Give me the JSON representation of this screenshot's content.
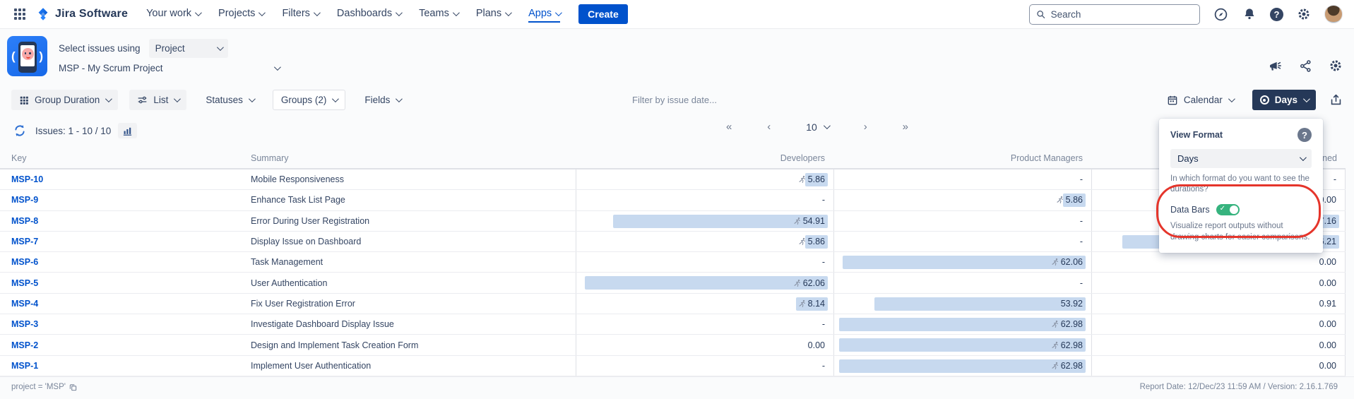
{
  "topnav": {
    "brand": "Jira Software",
    "items": [
      "Your work",
      "Projects",
      "Filters",
      "Dashboards",
      "Teams",
      "Plans",
      "Apps"
    ],
    "active_item": "Apps",
    "create_label": "Create",
    "search_placeholder": "Search"
  },
  "app_header": {
    "select_issues_label": "Select issues using",
    "select_issues_value": "Project",
    "project_value": "MSP - My Scrum Project"
  },
  "toolbar": {
    "group_button": "Group Duration",
    "view_button": "List",
    "statuses_button": "Statuses",
    "groups_button": "Groups (2)",
    "fields_button": "Fields",
    "filter_placeholder": "Filter by issue date...",
    "calendar_button": "Calendar",
    "format_button": "Days"
  },
  "issues_bar": {
    "count_text": "Issues: 1 - 10 / 10",
    "pagination": {
      "first": "«",
      "prev": "‹",
      "page_size": "10",
      "next": "›",
      "last": "»"
    }
  },
  "table": {
    "columns": [
      "Key",
      "Summary",
      "Developers",
      "Product Managers",
      "Unassigned"
    ],
    "bar_max": 63,
    "rows": [
      {
        "key": "MSP-10",
        "summary": "Mobile Responsiveness",
        "developers": {
          "v": "5.86",
          "bar": 5.86,
          "runner": true
        },
        "product_managers": {
          "v": "-"
        },
        "unassigned": {
          "v": "-"
        }
      },
      {
        "key": "MSP-9",
        "summary": "Enhance Task List Page",
        "developers": {
          "v": "-"
        },
        "product_managers": {
          "v": "5.86",
          "bar": 5.86,
          "runner": true
        },
        "unassigned": {
          "v": "0.00"
        }
      },
      {
        "key": "MSP-8",
        "summary": "Error During User Registration",
        "developers": {
          "v": "54.91",
          "bar": 54.91,
          "runner": true
        },
        "product_managers": {
          "v": "-"
        },
        "unassigned": {
          "v": "7.16",
          "bar": 7.16,
          "runner": false
        }
      },
      {
        "key": "MSP-7",
        "summary": "Display Issue on Dashboard",
        "developers": {
          "v": "5.86",
          "bar": 5.86,
          "runner": true
        },
        "product_managers": {
          "v": "-"
        },
        "unassigned": {
          "v": "56.21",
          "bar": 56.21,
          "runner": false
        }
      },
      {
        "key": "MSP-6",
        "summary": "Task Management",
        "developers": {
          "v": "-"
        },
        "product_managers": {
          "v": "62.06",
          "bar": 62.06,
          "runner": true
        },
        "unassigned": {
          "v": "0.00"
        }
      },
      {
        "key": "MSP-5",
        "summary": "User Authentication",
        "developers": {
          "v": "62.06",
          "bar": 62.06,
          "runner": true
        },
        "product_managers": {
          "v": "-"
        },
        "unassigned": {
          "v": "0.00"
        }
      },
      {
        "key": "MSP-4",
        "summary": "Fix User Registration Error",
        "developers": {
          "v": "8.14",
          "bar": 8.14,
          "runner": true
        },
        "product_managers": {
          "v": "53.92",
          "bar": 53.92,
          "runner": false
        },
        "unassigned": {
          "v": "0.91"
        }
      },
      {
        "key": "MSP-3",
        "summary": "Investigate Dashboard Display Issue",
        "developers": {
          "v": "-"
        },
        "product_managers": {
          "v": "62.98",
          "bar": 62.98,
          "runner": true
        },
        "unassigned": {
          "v": "0.00"
        }
      },
      {
        "key": "MSP-2",
        "summary": "Design and Implement Task Creation Form",
        "developers": {
          "v": "0.00"
        },
        "product_managers": {
          "v": "62.98",
          "bar": 62.98,
          "runner": true
        },
        "unassigned": {
          "v": "0.00"
        }
      },
      {
        "key": "MSP-1",
        "summary": "Implement User Authentication",
        "developers": {
          "v": "-"
        },
        "product_managers": {
          "v": "62.98",
          "bar": 62.98,
          "runner": true
        },
        "unassigned": {
          "v": "0.00"
        }
      }
    ]
  },
  "format_panel": {
    "title": "View Format",
    "select_value": "Days",
    "select_help": "In which format do you want to see the durations?",
    "toggle_label": "Data Bars",
    "toggle_on": true,
    "toggle_help": "Visualize report outputs without drawing charts for easier comparisons."
  },
  "footer": {
    "left": "project = 'MSP'",
    "right": "Report Date: 12/Dec/23 11:59 AM / Version: 2.16.1.769"
  },
  "colors": {
    "accent": "#0052CC",
    "bar_fill": "#C7D9EF",
    "toggle_on": "#36B37E",
    "annotation_red": "#E5352B",
    "days_button_bg": "#253858"
  }
}
